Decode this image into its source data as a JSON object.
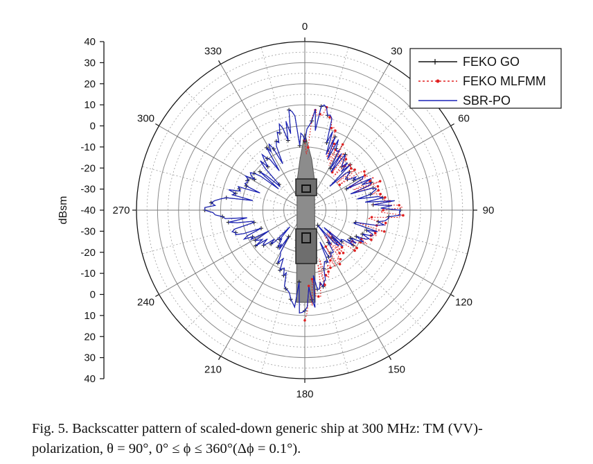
{
  "chart_data": {
    "type": "polar-line",
    "ylabel": "dBsm",
    "radial_ticks": [
      "40",
      "30",
      "20",
      "10",
      "0",
      "-10",
      "-20",
      "-30",
      "-40",
      "-30",
      "-20",
      "-10",
      "0",
      "10",
      "20",
      "30",
      "40"
    ],
    "radial_range": [
      -40,
      40
    ],
    "angle_ticks": [
      "0",
      "30",
      "60",
      "90",
      "120",
      "150",
      "180",
      "210",
      "240",
      "270",
      "300",
      "330"
    ],
    "angle_unit": "degrees",
    "angle_zero": "top",
    "angle_direction": "clockwise",
    "grid": true,
    "legend_position": "top-right",
    "series": [
      {
        "name": "FEKO GO",
        "color": "#111111",
        "dash": "solid",
        "marker": "plus",
        "phi": [
          0,
          8,
          15,
          22,
          30,
          40,
          50,
          60,
          70,
          80,
          90,
          100,
          110,
          120,
          130,
          140,
          150,
          160,
          170,
          180,
          190,
          200,
          210,
          220,
          230,
          240,
          250,
          260,
          270,
          280,
          290,
          300,
          310,
          320,
          330,
          340,
          350,
          360
        ],
        "rcs": [
          -5,
          10,
          8,
          -2,
          -6,
          -10,
          -14,
          -8,
          -6,
          -4,
          8,
          -4,
          -6,
          -10,
          -16,
          -20,
          -14,
          -10,
          0,
          10,
          0,
          -10,
          -14,
          -20,
          -16,
          -10,
          -6,
          -4,
          8,
          -4,
          -6,
          -8,
          -14,
          -10,
          -6,
          -2,
          8,
          -5
        ]
      },
      {
        "name": "FEKO MLFMM",
        "color": "#e02020",
        "dash": "dotted",
        "marker": "dot",
        "phi": [
          0,
          8,
          15,
          22,
          30,
          40,
          50,
          60,
          70,
          80,
          90,
          100,
          110,
          120,
          130,
          140,
          150,
          160,
          170,
          180
        ],
        "rcs": [
          -5,
          10,
          8,
          -2,
          -6,
          -8,
          -10,
          -6,
          -4,
          -2,
          8,
          -2,
          -4,
          -8,
          -12,
          -16,
          -10,
          -8,
          0,
          10
        ]
      },
      {
        "name": "SBR-PO",
        "color": "#1a22b8",
        "dash": "solid",
        "marker": "none",
        "phi": [
          0,
          8,
          15,
          22,
          30,
          40,
          50,
          60,
          70,
          80,
          90,
          100,
          110,
          120,
          130,
          140,
          150,
          160,
          170,
          180,
          190,
          200,
          210,
          220,
          230,
          240,
          250,
          260,
          270,
          280,
          290,
          300,
          310,
          320,
          330,
          340,
          350,
          360
        ],
        "rcs": [
          -5,
          10,
          8,
          -2,
          -6,
          -10,
          -14,
          -8,
          -6,
          -4,
          8,
          -4,
          -6,
          -10,
          -16,
          -20,
          -14,
          -10,
          0,
          10,
          0,
          -10,
          -14,
          -20,
          -16,
          -10,
          -6,
          -4,
          8,
          -4,
          -6,
          -8,
          -14,
          -10,
          -6,
          -2,
          8,
          -5
        ]
      }
    ]
  },
  "caption": {
    "line1": "Fig. 5.   Backscatter pattern of scaled-down generic ship at 300 MHz: TM (VV)-",
    "line2": "polarization, θ = 90°, 0° ≤ ϕ ≤ 360°(Δϕ = 0.1°)."
  }
}
